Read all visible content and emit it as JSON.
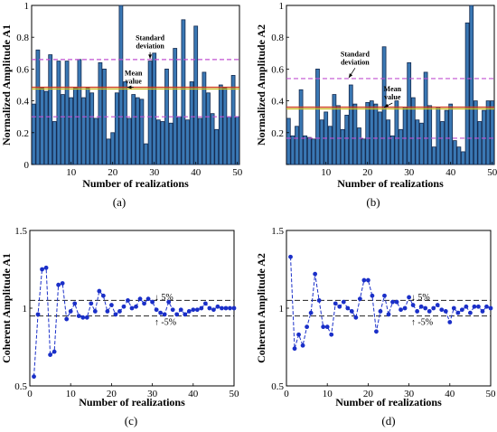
{
  "colors": {
    "bar_fill": "#3a78b4",
    "bar_edge": "#13294e",
    "std_line": "#c050d0",
    "mean_line": "#d04020",
    "mean_line_inner": "#c8c020",
    "marker": "#1a2fc8",
    "ref_line": "#222222"
  },
  "chart_data": [
    {
      "id": "a",
      "type": "bar",
      "caption": "(a)",
      "xlabel": "Number of realizations",
      "ylabel": "Normalized Amplitude A1",
      "xlim": [
        0.5,
        50.5
      ],
      "ylim": [
        0,
        1
      ],
      "xticks": [
        10,
        20,
        30,
        40,
        50
      ],
      "yticks": [
        0,
        0.2,
        0.4,
        0.6,
        0.8,
        1
      ],
      "ytick_labels": [
        "0",
        "0.2",
        "0.4",
        "0.6",
        "0.8",
        "1"
      ],
      "x": [
        1,
        2,
        3,
        4,
        5,
        6,
        7,
        8,
        9,
        10,
        11,
        12,
        13,
        14,
        15,
        16,
        17,
        18,
        19,
        20,
        21,
        22,
        23,
        24,
        25,
        26,
        27,
        28,
        29,
        30,
        31,
        32,
        33,
        34,
        35,
        36,
        37,
        38,
        39,
        40,
        41,
        42,
        43,
        44,
        45,
        46,
        47,
        48,
        49,
        50
      ],
      "values": [
        0.38,
        0.72,
        0.48,
        0.46,
        0.69,
        0.27,
        0.65,
        0.44,
        0.65,
        0.42,
        0.48,
        0.66,
        0.42,
        0.48,
        0.45,
        0.29,
        0.64,
        0.6,
        0.16,
        0.2,
        0.45,
        1.0,
        0.52,
        0.29,
        0.44,
        0.42,
        0.41,
        0.13,
        0.65,
        0.7,
        0.28,
        0.27,
        0.6,
        0.26,
        0.73,
        0.3,
        0.91,
        0.28,
        0.52,
        0.87,
        0.29,
        0.58,
        0.45,
        0.32,
        0.22,
        0.5,
        0.48,
        0.3,
        0.56,
        0.3
      ],
      "mean": 0.48,
      "std_upper": 0.66,
      "std_lower": 0.3,
      "annotations": [
        {
          "text": [
            "Standard",
            "deviation"
          ],
          "x": 29,
          "y": 0.78,
          "arrow_to": [
            29,
            0.665
          ]
        },
        {
          "text": [
            "Mean",
            "value"
          ],
          "x": 25,
          "y": 0.56,
          "arrow_to": [
            23.5,
            0.485
          ]
        }
      ]
    },
    {
      "id": "b",
      "type": "bar",
      "caption": "(b)",
      "xlabel": "Number of realizations",
      "ylabel": "Normalized Amplitude A2",
      "xlim": [
        0.5,
        50.5
      ],
      "ylim": [
        0,
        1
      ],
      "xticks": [
        10,
        20,
        30,
        40,
        50
      ],
      "yticks": [
        0,
        0.2,
        0.4,
        0.6,
        0.8,
        1
      ],
      "ytick_labels": [
        "",
        "0.2",
        "0.4",
        "0.6",
        "0.8",
        "1"
      ],
      "x": [
        1,
        2,
        3,
        4,
        5,
        6,
        7,
        8,
        9,
        10,
        11,
        12,
        13,
        14,
        15,
        16,
        17,
        18,
        19,
        20,
        21,
        22,
        23,
        24,
        25,
        26,
        27,
        28,
        29,
        30,
        31,
        32,
        33,
        34,
        35,
        36,
        37,
        38,
        39,
        40,
        41,
        42,
        43,
        44,
        45,
        46,
        47,
        48,
        49,
        50
      ],
      "values": [
        0.29,
        0.18,
        0.24,
        0.47,
        0.18,
        0.17,
        0.16,
        0.6,
        0.28,
        0.33,
        0.24,
        0.44,
        0.37,
        0.22,
        0.31,
        0.5,
        0.38,
        0.23,
        0.16,
        0.39,
        0.4,
        0.38,
        0.33,
        0.74,
        0.28,
        0.18,
        0.4,
        0.22,
        0.36,
        0.64,
        0.42,
        0.28,
        0.26,
        0.58,
        0.37,
        0.11,
        0.36,
        0.27,
        0.34,
        0.38,
        0.15,
        0.11,
        0.08,
        0.89,
        1.0,
        0.4,
        0.27,
        0.34,
        0.4,
        0.4
      ],
      "mean": 0.355,
      "std_upper": 0.54,
      "std_lower": 0.165,
      "annotations": [
        {
          "text": [
            "Standard",
            "deviation"
          ],
          "x": 17,
          "y": 0.68,
          "arrow_to": [
            15.5,
            0.545
          ]
        },
        {
          "text": [
            "Mean",
            "value"
          ],
          "x": 26,
          "y": 0.46,
          "arrow_to": [
            24,
            0.36
          ]
        }
      ]
    },
    {
      "id": "c",
      "type": "line",
      "caption": "(c)",
      "xlabel": "Number of realizations",
      "ylabel": "Coherent Amplitude A1",
      "xlim": [
        0,
        50
      ],
      "ylim": [
        0.5,
        1.5
      ],
      "xticks": [
        0,
        10,
        20,
        30,
        40,
        50
      ],
      "yticks": [
        0.5,
        1,
        1.5
      ],
      "ytick_labels": [
        "0.5",
        "1",
        "1.5"
      ],
      "x": [
        1,
        2,
        3,
        4,
        5,
        6,
        7,
        8,
        9,
        10,
        11,
        12,
        13,
        14,
        15,
        16,
        17,
        18,
        19,
        20,
        21,
        22,
        23,
        24,
        25,
        26,
        27,
        28,
        29,
        30,
        31,
        32,
        33,
        34,
        35,
        36,
        37,
        38,
        39,
        40,
        41,
        42,
        43,
        44,
        45,
        46,
        47,
        48,
        49,
        50
      ],
      "values": [
        0.56,
        0.96,
        1.25,
        1.26,
        0.7,
        0.72,
        1.15,
        1.16,
        0.93,
        0.98,
        1.03,
        0.95,
        0.94,
        0.94,
        1.03,
        0.98,
        1.11,
        1.08,
        0.98,
        1.02,
        0.96,
        0.98,
        1.01,
        1.05,
        1.0,
        1.01,
        1.06,
        1.03,
        1.06,
        1.04,
        0.99,
        0.97,
        0.96,
        1.04,
        0.99,
        0.96,
        0.99,
        0.96,
        0.98,
        0.99,
        0.99,
        1.0,
        1.03,
        1.0,
        0.99,
        1.01,
        1.0,
        1.0,
        1.0,
        1.0
      ],
      "ref_lines": [
        1.05,
        0.95
      ],
      "labels": [
        {
          "text": "↓ 5%",
          "x": 30.5,
          "y": 1.07
        },
        {
          "text": "↑ -5%",
          "x": 30.5,
          "y": 0.91
        }
      ]
    },
    {
      "id": "d",
      "type": "line",
      "caption": "(d)",
      "xlabel": "Number of realizations",
      "ylabel": "Coherent Amplitude A2",
      "xlim": [
        0,
        50
      ],
      "ylim": [
        0.5,
        1.5
      ],
      "xticks": [
        0,
        10,
        20,
        30,
        40,
        50
      ],
      "yticks": [
        0.5,
        1,
        1.5
      ],
      "ytick_labels": [
        "0.5",
        "1",
        "1.5"
      ],
      "x": [
        1,
        2,
        3,
        4,
        5,
        6,
        7,
        8,
        9,
        10,
        11,
        12,
        13,
        14,
        15,
        16,
        17,
        18,
        19,
        20,
        21,
        22,
        23,
        24,
        25,
        26,
        27,
        28,
        29,
        30,
        31,
        32,
        33,
        34,
        35,
        36,
        37,
        38,
        39,
        40,
        41,
        42,
        43,
        44,
        45,
        46,
        47,
        48,
        49,
        50
      ],
      "values": [
        1.33,
        0.74,
        0.83,
        0.76,
        0.88,
        0.97,
        1.22,
        1.05,
        0.88,
        0.88,
        0.83,
        1.03,
        1.01,
        1.04,
        1.0,
        0.98,
        0.94,
        1.06,
        1.18,
        1.18,
        1.08,
        0.85,
        0.98,
        1.08,
        0.96,
        1.04,
        1.04,
        0.99,
        1.0,
        1.07,
        1.02,
        0.98,
        1.01,
        1.0,
        0.98,
        1.0,
        1.02,
        0.99,
        0.98,
        0.91,
        1.0,
        0.97,
        0.99,
        1.01,
        0.97,
        1.01,
        1.01,
        0.98,
        1.01,
        1.0
      ],
      "ref_lines": [
        1.05,
        0.95
      ],
      "labels": [
        {
          "text": "↓ 5%",
          "x": 30.5,
          "y": 1.07
        },
        {
          "text": "↑ -5%",
          "x": 30.5,
          "y": 0.91
        }
      ]
    }
  ]
}
